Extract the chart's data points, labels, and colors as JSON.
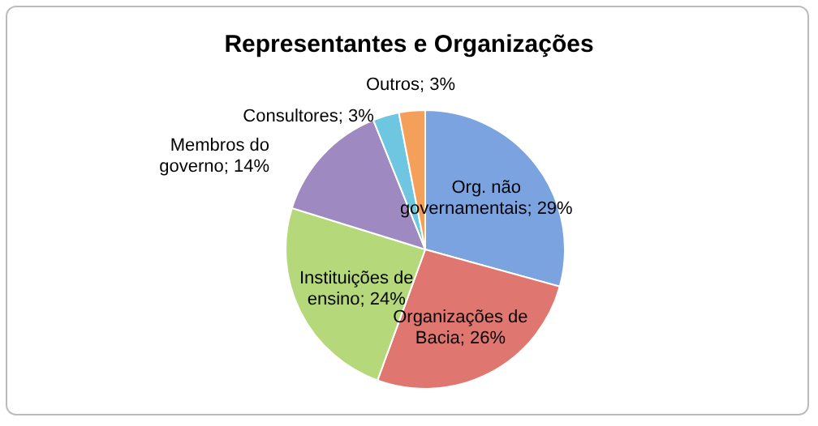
{
  "chart_data": {
    "type": "pie",
    "title": "Representantes e Organizações",
    "categories": [
      "Org. não governamentais",
      "Organizações de Bacia",
      "Instituições de ensino",
      "Membros do governo",
      "Consultores",
      "Outros"
    ],
    "values": [
      29,
      26,
      24,
      14,
      3,
      3
    ],
    "value_labels": [
      "29%",
      "26%",
      "24%",
      "14%",
      "3%",
      "3%"
    ],
    "colors": [
      "#7ba3e0",
      "#e07670",
      "#b5d97a",
      "#9e8ac0",
      "#6fc6e0",
      "#f5a05a"
    ]
  }
}
